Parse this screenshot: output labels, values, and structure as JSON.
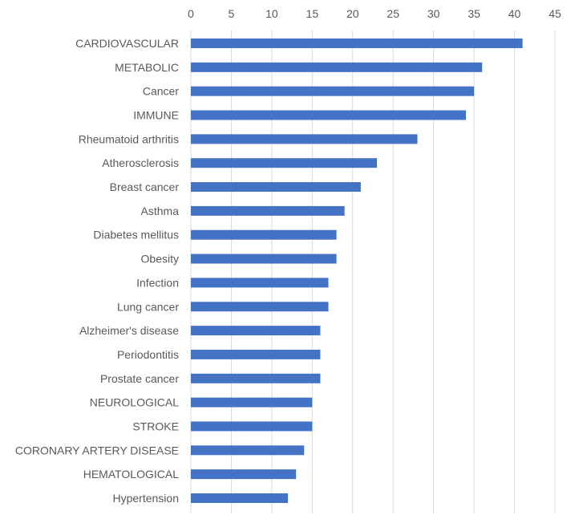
{
  "chart_data": {
    "type": "bar",
    "orientation": "horizontal",
    "categories": [
      "CARDIOVASCULAR",
      "METABOLIC",
      "Cancer",
      "IMMUNE",
      "Rheumatoid arthritis",
      "Atherosclerosis",
      "Breast cancer",
      "Asthma",
      "Diabetes mellitus",
      "Obesity",
      "Infection",
      "Lung cancer",
      "Alzheimer's disease",
      "Periodontitis",
      "Prostate cancer",
      "NEUROLOGICAL",
      "STROKE",
      "CORONARY ARTERY DISEASE",
      "HEMATOLOGICAL",
      "Hypertension"
    ],
    "values": [
      41,
      36,
      35,
      34,
      28,
      23,
      21,
      19,
      18,
      18,
      17,
      17,
      16,
      16,
      16,
      15,
      15,
      14,
      13,
      12
    ],
    "xlim": [
      0,
      45
    ],
    "xticks": [
      0,
      5,
      10,
      15,
      20,
      25,
      30,
      35,
      40,
      45
    ],
    "x_axis_position": "top",
    "grid": true,
    "legend": "none",
    "bar_color": "#4472c4"
  }
}
